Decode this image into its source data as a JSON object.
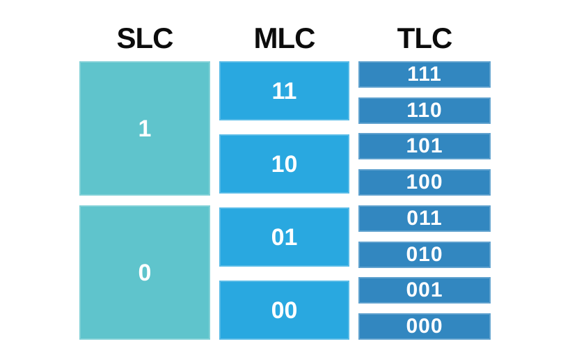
{
  "colors": {
    "slc": "#5fc4cc",
    "mlc": "#29a8e0",
    "tlc": "#3287c0",
    "header_text": "#0c0c0c",
    "cell_text": "#ffffff",
    "background": "#ffffff"
  },
  "columns": [
    {
      "key": "slc",
      "header": "SLC",
      "cells": [
        "1",
        "0"
      ]
    },
    {
      "key": "mlc",
      "header": "MLC",
      "cells": [
        "11",
        "10",
        "01",
        "00"
      ]
    },
    {
      "key": "tlc",
      "header": "TLC",
      "cells": [
        "111",
        "110",
        "101",
        "100",
        "011",
        "010",
        "001",
        "000"
      ]
    }
  ]
}
